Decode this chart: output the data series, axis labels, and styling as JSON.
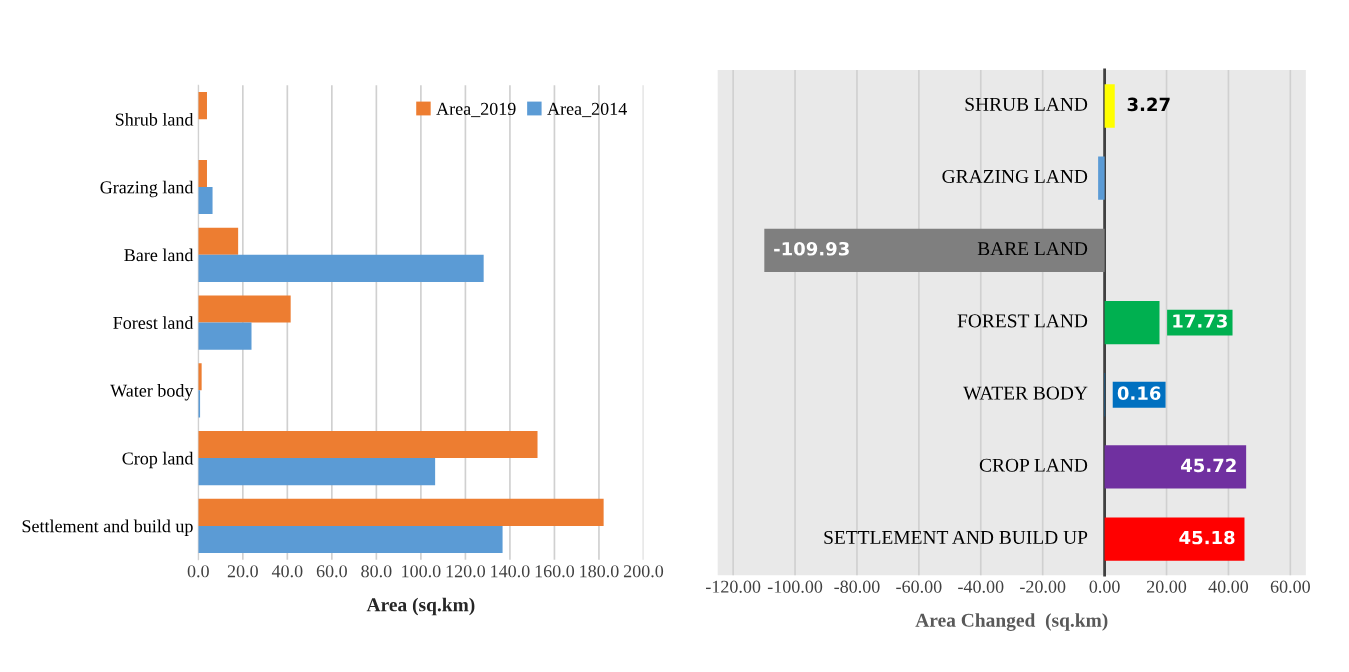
{
  "chart_data": [
    {
      "type": "bar",
      "orientation": "horizontal",
      "xlabel": "Area (sq.km)",
      "categories": [
        "Shrub land",
        "Grazing land",
        "Bare land",
        "Forest land",
        "Water body",
        "Crop land",
        "Settlement and build up"
      ],
      "series": [
        {
          "name": "Area_2019",
          "color": "#ed7d31",
          "values": [
            3.9,
            3.9,
            17.9,
            41.5,
            1.5,
            152.4,
            182.1
          ]
        },
        {
          "name": "Area_2014",
          "color": "#5b9bd5",
          "values": [
            null,
            6.4,
            128.2,
            23.9,
            0.8,
            106.4,
            136.7
          ]
        }
      ],
      "xlim": [
        0,
        200
      ],
      "xticks": [
        {
          "value": 0,
          "label": "0.0"
        },
        {
          "value": 20,
          "label": "20.0"
        },
        {
          "value": 40,
          "label": "40.0"
        },
        {
          "value": 60,
          "label": "60.0"
        },
        {
          "value": 80,
          "label": "80.0"
        },
        {
          "value": 100,
          "label": "100.0"
        },
        {
          "value": 120,
          "label": "120.0"
        },
        {
          "value": 140,
          "label": "140.0"
        },
        {
          "value": 160,
          "label": "160.0"
        },
        {
          "value": 180,
          "label": "180.0"
        },
        {
          "value": 200,
          "label": "200.0"
        }
      ],
      "grid": "x",
      "legend": "top right"
    },
    {
      "type": "bar",
      "orientation": "horizontal",
      "xlabel": "Area Changed  (sq.km)",
      "categories": [
        "SHRUB LAND",
        "GRAZING LAND",
        "BARE LAND",
        "FOREST LAND",
        "WATER BODY",
        "CROP LAND",
        "SETTLEMENT AND BUILD UP"
      ],
      "values": [
        3.27,
        -2.1,
        -109.93,
        17.73,
        0.16,
        45.72,
        45.18
      ],
      "value_labels": [
        "3.27",
        null,
        "-109.93",
        "17.73",
        "0.16",
        "45.72",
        "45.18"
      ],
      "colors": [
        "#ffff00",
        "#5b9bd5",
        "#7f7f7f",
        "#00b050",
        "#0070c0",
        "#7030a0",
        "#ff0000"
      ],
      "xlim": [
        -125,
        65
      ],
      "xticks": [
        {
          "value": -120,
          "label": "-120.00"
        },
        {
          "value": -100,
          "label": "-100.00"
        },
        {
          "value": -80,
          "label": "-80.00"
        },
        {
          "value": -60,
          "label": "-60.00"
        },
        {
          "value": -40,
          "label": "-40.00"
        },
        {
          "value": -20,
          "label": "-20.00"
        },
        {
          "value": 0,
          "label": "0.00"
        },
        {
          "value": 20,
          "label": "20.00"
        },
        {
          "value": 40,
          "label": "40.00"
        },
        {
          "value": 60,
          "label": "60.00"
        }
      ],
      "grid": "x"
    }
  ]
}
